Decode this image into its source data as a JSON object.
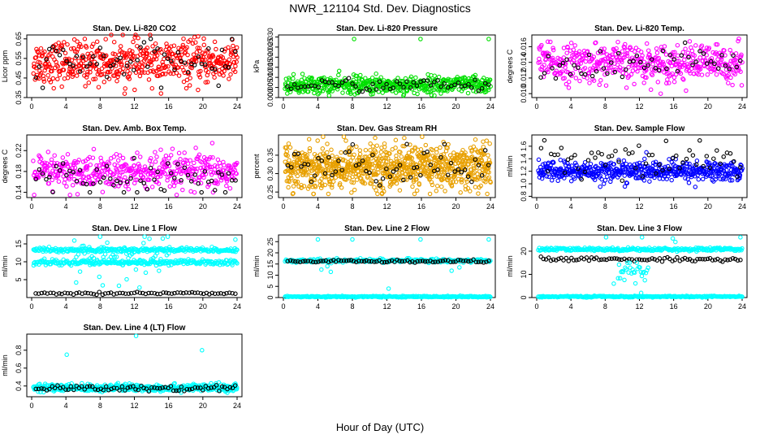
{
  "figure": {
    "title": "NWR_121104  Std. Dev. Diagnostics",
    "xlabel": "Hour of Day (UTC)"
  },
  "chart_data": [
    {
      "type": "scatter",
      "title": "Stan. Dev. Li-820 CO2",
      "ylabel": "Licor ppm",
      "xlim": [
        0,
        24
      ],
      "xticks": [
        0,
        4,
        8,
        12,
        16,
        20,
        24
      ],
      "ylim": [
        0.35,
        0.67
      ],
      "yticks": [
        "0.35",
        "0.45",
        "0.55",
        "0.65"
      ],
      "series": [
        {
          "color": "#ff0000",
          "pattern": {
            "n": 520,
            "center": 0.53,
            "spread": 0.055,
            "min": 0.37,
            "max": 0.67,
            "x_start": 0.2,
            "x_end": 24.0
          }
        },
        {
          "color": "#000000",
          "pattern": {
            "n": 60,
            "center": 0.53,
            "spread": 0.05,
            "min": 0.4,
            "max": 0.65,
            "x_start": 0.5,
            "x_end": 23.8
          }
        }
      ]
    },
    {
      "type": "scatter",
      "title": "Stan. Dev. Li-820 Pressure",
      "ylabel": "kPa",
      "xlim": [
        0,
        24
      ],
      "xticks": [
        0,
        4,
        8,
        12,
        16,
        20,
        24
      ],
      "ylim": [
        0,
        0.031
      ],
      "yticks": [
        "0.000",
        "0.005",
        "0.010",
        "0.015",
        "0.020",
        "0.025",
        "0.030"
      ],
      "series": [
        {
          "color": "#00e000",
          "pattern": {
            "n": 520,
            "center": 0.0062,
            "spread": 0.0022,
            "min": 0.001,
            "max": 0.0135,
            "x_start": 0.2,
            "x_end": 24.0
          }
        },
        {
          "color": "#000000",
          "pattern": {
            "n": 60,
            "center": 0.0062,
            "spread": 0.0016,
            "min": 0.002,
            "max": 0.011,
            "x_start": 0.5,
            "x_end": 23.8
          }
        },
        {
          "color": "#00e000",
          "points": [
            [
              8.2,
              0.029
            ],
            [
              15.9,
              0.029
            ],
            [
              23.8,
              0.029
            ]
          ]
        }
      ]
    },
    {
      "type": "scatter",
      "title": "Stan. Dev. Li-820 Temp.",
      "ylabel": "degrees C",
      "xlim": [
        0,
        24
      ],
      "xticks": [
        0,
        4,
        8,
        12,
        16,
        20,
        24
      ],
      "ylim": [
        0.0095,
        0.0175
      ],
      "yticks": [
        "0.010",
        "0.012",
        "0.014",
        "0.016"
      ],
      "series": [
        {
          "color": "#ff00ff",
          "pattern": {
            "n": 480,
            "center": 0.0139,
            "spread": 0.0012,
            "min": 0.01,
            "max": 0.0172,
            "x_start": 0.2,
            "x_end": 24.0
          }
        },
        {
          "color": "#000000",
          "pattern": {
            "n": 55,
            "center": 0.0138,
            "spread": 0.001,
            "min": 0.011,
            "max": 0.0168,
            "x_start": 0.5,
            "x_end": 23.8
          }
        }
      ]
    },
    {
      "type": "scatter",
      "title": "Stan. Dev. Amb. Box Temp.",
      "ylabel": "degrees C",
      "xlim": [
        0,
        24
      ],
      "xticks": [
        0,
        4,
        8,
        12,
        16,
        20,
        24
      ],
      "ylim": [
        0.13,
        0.25
      ],
      "yticks": [
        "0.14",
        "0.18",
        "0.22"
      ],
      "series": [
        {
          "color": "#ff00ff",
          "pattern": {
            "n": 460,
            "center": 0.178,
            "spread": 0.018,
            "min": 0.135,
            "max": 0.245,
            "x_start": 0.2,
            "x_end": 24.0
          }
        },
        {
          "color": "#000000",
          "pattern": {
            "n": 60,
            "center": 0.168,
            "spread": 0.015,
            "min": 0.14,
            "max": 0.21,
            "x_start": 0.5,
            "x_end": 23.8
          }
        }
      ]
    },
    {
      "type": "scatter",
      "title": "Stan. Dev. Gas Stream RH",
      "ylabel": "percent",
      "xlim": [
        0,
        24
      ],
      "xticks": [
        0,
        4,
        8,
        12,
        16,
        20,
        24
      ],
      "ylim": [
        0.235,
        0.405
      ],
      "yticks": [
        "0.25",
        "0.30",
        "0.35"
      ],
      "series": [
        {
          "color": "#e8a000",
          "pattern": {
            "n": 900,
            "center": 0.318,
            "spread": 0.03,
            "min": 0.245,
            "max": 0.4,
            "x_start": 0.2,
            "x_end": 24.0
          }
        },
        {
          "color": "#000000",
          "pattern": {
            "n": 60,
            "center": 0.32,
            "spread": 0.028,
            "min": 0.26,
            "max": 0.38,
            "x_start": 0.5,
            "x_end": 23.8
          }
        }
      ]
    },
    {
      "type": "scatter",
      "title": "Stan. Dev. Sample Flow",
      "ylabel": "ml/min",
      "xlim": [
        0,
        24
      ],
      "xticks": [
        0,
        4,
        8,
        12,
        16,
        20,
        24
      ],
      "ylim": [
        0.78,
        1.78
      ],
      "yticks": [
        "0.8",
        "1.0",
        "1.2",
        "1.4",
        "1.6"
      ],
      "series": [
        {
          "color": "#0000ff",
          "pattern": {
            "n": 520,
            "center": 1.2,
            "spread": 0.08,
            "min": 0.8,
            "max": 1.55,
            "x_start": 0.2,
            "x_end": 24.0
          }
        },
        {
          "color": "#000000",
          "pattern": {
            "n": 60,
            "center": 1.4,
            "spread": 0.14,
            "min": 1.05,
            "max": 1.72,
            "x_start": 0.5,
            "x_end": 23.8
          }
        }
      ]
    },
    {
      "type": "scatter",
      "title": "Stan. Dev. Line 1 Flow",
      "ylabel": "ml/min",
      "xlim": [
        0,
        24
      ],
      "xticks": [
        0,
        4,
        8,
        12,
        16,
        20,
        24
      ],
      "ylim": [
        0,
        17.5
      ],
      "yticks": [
        "5",
        "10",
        "15"
      ],
      "series": [
        {
          "color": "#00ffff",
          "pattern": {
            "n": 260,
            "center": 13.3,
            "spread": 0.35,
            "min": 11.5,
            "max": 15,
            "x_start": 0.2,
            "x_end": 24.0
          }
        },
        {
          "color": "#00ffff",
          "pattern": {
            "n": 260,
            "center": 9.8,
            "spread": 0.35,
            "min": 8.5,
            "max": 11.5,
            "x_start": 0.2,
            "x_end": 24.0
          }
        },
        {
          "color": "#00ffff",
          "pattern": {
            "n": 50,
            "center": 11.5,
            "spread": 2.2,
            "min": 5,
            "max": 16.5,
            "x_start": 5,
            "x_end": 16
          }
        },
        {
          "color": "#000000",
          "pattern": {
            "n": 70,
            "center": 1.2,
            "spread": 0.15,
            "min": 0.7,
            "max": 1.8,
            "x_start": 0.5,
            "x_end": 23.8
          }
        },
        {
          "color": "#00ffff",
          "points": [
            [
              8,
              17
            ],
            [
              13.2,
              17
            ],
            [
              15.9,
              17
            ],
            [
              23.8,
              16.2
            ],
            [
              5.2,
              4.2
            ],
            [
              8.3,
              3.4
            ],
            [
              10.2,
              3.3
            ],
            [
              12.6,
              2.8
            ],
            [
              7.9,
              5.8
            ],
            [
              11.1,
              5.1
            ]
          ]
        }
      ]
    },
    {
      "type": "scatter",
      "title": "Stan. Dev. Line 2 Flow",
      "ylabel": "ml/min",
      "xlim": [
        0,
        24
      ],
      "xticks": [
        0,
        4,
        8,
        12,
        16,
        20,
        24
      ],
      "ylim": [
        0,
        28
      ],
      "yticks": [
        "0",
        "5",
        "10",
        "15",
        "20",
        "25"
      ],
      "series": [
        {
          "color": "#00ffff",
          "pattern": {
            "n": 260,
            "center": 16.5,
            "spread": 0.4,
            "min": 15,
            "max": 18,
            "x_start": 0.2,
            "x_end": 24.0
          }
        },
        {
          "color": "#00ffff",
          "pattern": {
            "n": 260,
            "center": 0.4,
            "spread": 0.15,
            "min": 0,
            "max": 1,
            "x_start": 0.2,
            "x_end": 24.0
          }
        },
        {
          "color": "#000000",
          "pattern": {
            "n": 80,
            "center": 16.2,
            "spread": 0.35,
            "min": 15,
            "max": 17.5,
            "x_start": 0.5,
            "x_end": 23.8
          }
        },
        {
          "color": "#00ffff",
          "points": [
            [
              4,
              26
            ],
            [
              8,
              26
            ],
            [
              15.9,
              26
            ],
            [
              23.8,
              26
            ],
            [
              12.2,
              4
            ],
            [
              4.4,
              12.5
            ],
            [
              5.1,
              14
            ],
            [
              19.5,
              12
            ],
            [
              20.4,
              13.5
            ],
            [
              5.5,
              11.5
            ]
          ]
        }
      ]
    },
    {
      "type": "scatter",
      "title": "Stan. Dev. Line 3 Flow",
      "ylabel": "ml/min",
      "xlim": [
        0,
        24
      ],
      "xticks": [
        0,
        4,
        8,
        12,
        16,
        20,
        24
      ],
      "ylim": [
        0,
        27
      ],
      "yticks": [
        "0",
        "10",
        "20"
      ],
      "series": [
        {
          "color": "#00ffff",
          "pattern": {
            "n": 260,
            "center": 20.8,
            "spread": 0.35,
            "min": 19.5,
            "max": 22,
            "x_start": 0.2,
            "x_end": 24.0
          }
        },
        {
          "color": "#00ffff",
          "pattern": {
            "n": 260,
            "center": 0.4,
            "spread": 0.15,
            "min": 0,
            "max": 1,
            "x_start": 0.2,
            "x_end": 24.0
          }
        },
        {
          "color": "#000000",
          "pattern": {
            "n": 80,
            "center": 16.5,
            "spread": 0.4,
            "min": 15,
            "max": 18,
            "x_start": 0.5,
            "x_end": 23.8
          }
        },
        {
          "color": "#00ffff",
          "pattern": {
            "n": 30,
            "center": 11,
            "spread": 2.5,
            "min": 5,
            "max": 15,
            "x_start": 9.5,
            "x_end": 13
          }
        },
        {
          "color": "#00ffff",
          "points": [
            [
              8.1,
              26
            ],
            [
              12.3,
              26
            ],
            [
              15.9,
              25.5
            ],
            [
              16.2,
              24
            ],
            [
              23.8,
              26
            ],
            [
              12.2,
              2
            ],
            [
              9,
              6
            ]
          ]
        }
      ]
    },
    {
      "type": "scatter",
      "title": "Stan. Dev. Line 4 (LT) Flow",
      "ylabel": "ml/min",
      "xlim": [
        0,
        24
      ],
      "xticks": [
        0,
        4,
        8,
        12,
        16,
        20,
        24
      ],
      "ylim": [
        0.28,
        0.98
      ],
      "yticks": [
        "0.4",
        "0.6",
        "0.8"
      ],
      "series": [
        {
          "color": "#00ffff",
          "pattern": {
            "n": 520,
            "center": 0.38,
            "spread": 0.02,
            "min": 0.3,
            "max": 0.46,
            "x_start": 0.2,
            "x_end": 24.0
          }
        },
        {
          "color": "#000000",
          "pattern": {
            "n": 75,
            "center": 0.375,
            "spread": 0.018,
            "min": 0.32,
            "max": 0.43,
            "x_start": 0.5,
            "x_end": 23.8
          }
        },
        {
          "color": "#00ffff",
          "points": [
            [
              12.2,
              0.96
            ],
            [
              4.1,
              0.75
            ],
            [
              19.9,
              0.8
            ]
          ]
        }
      ]
    }
  ]
}
